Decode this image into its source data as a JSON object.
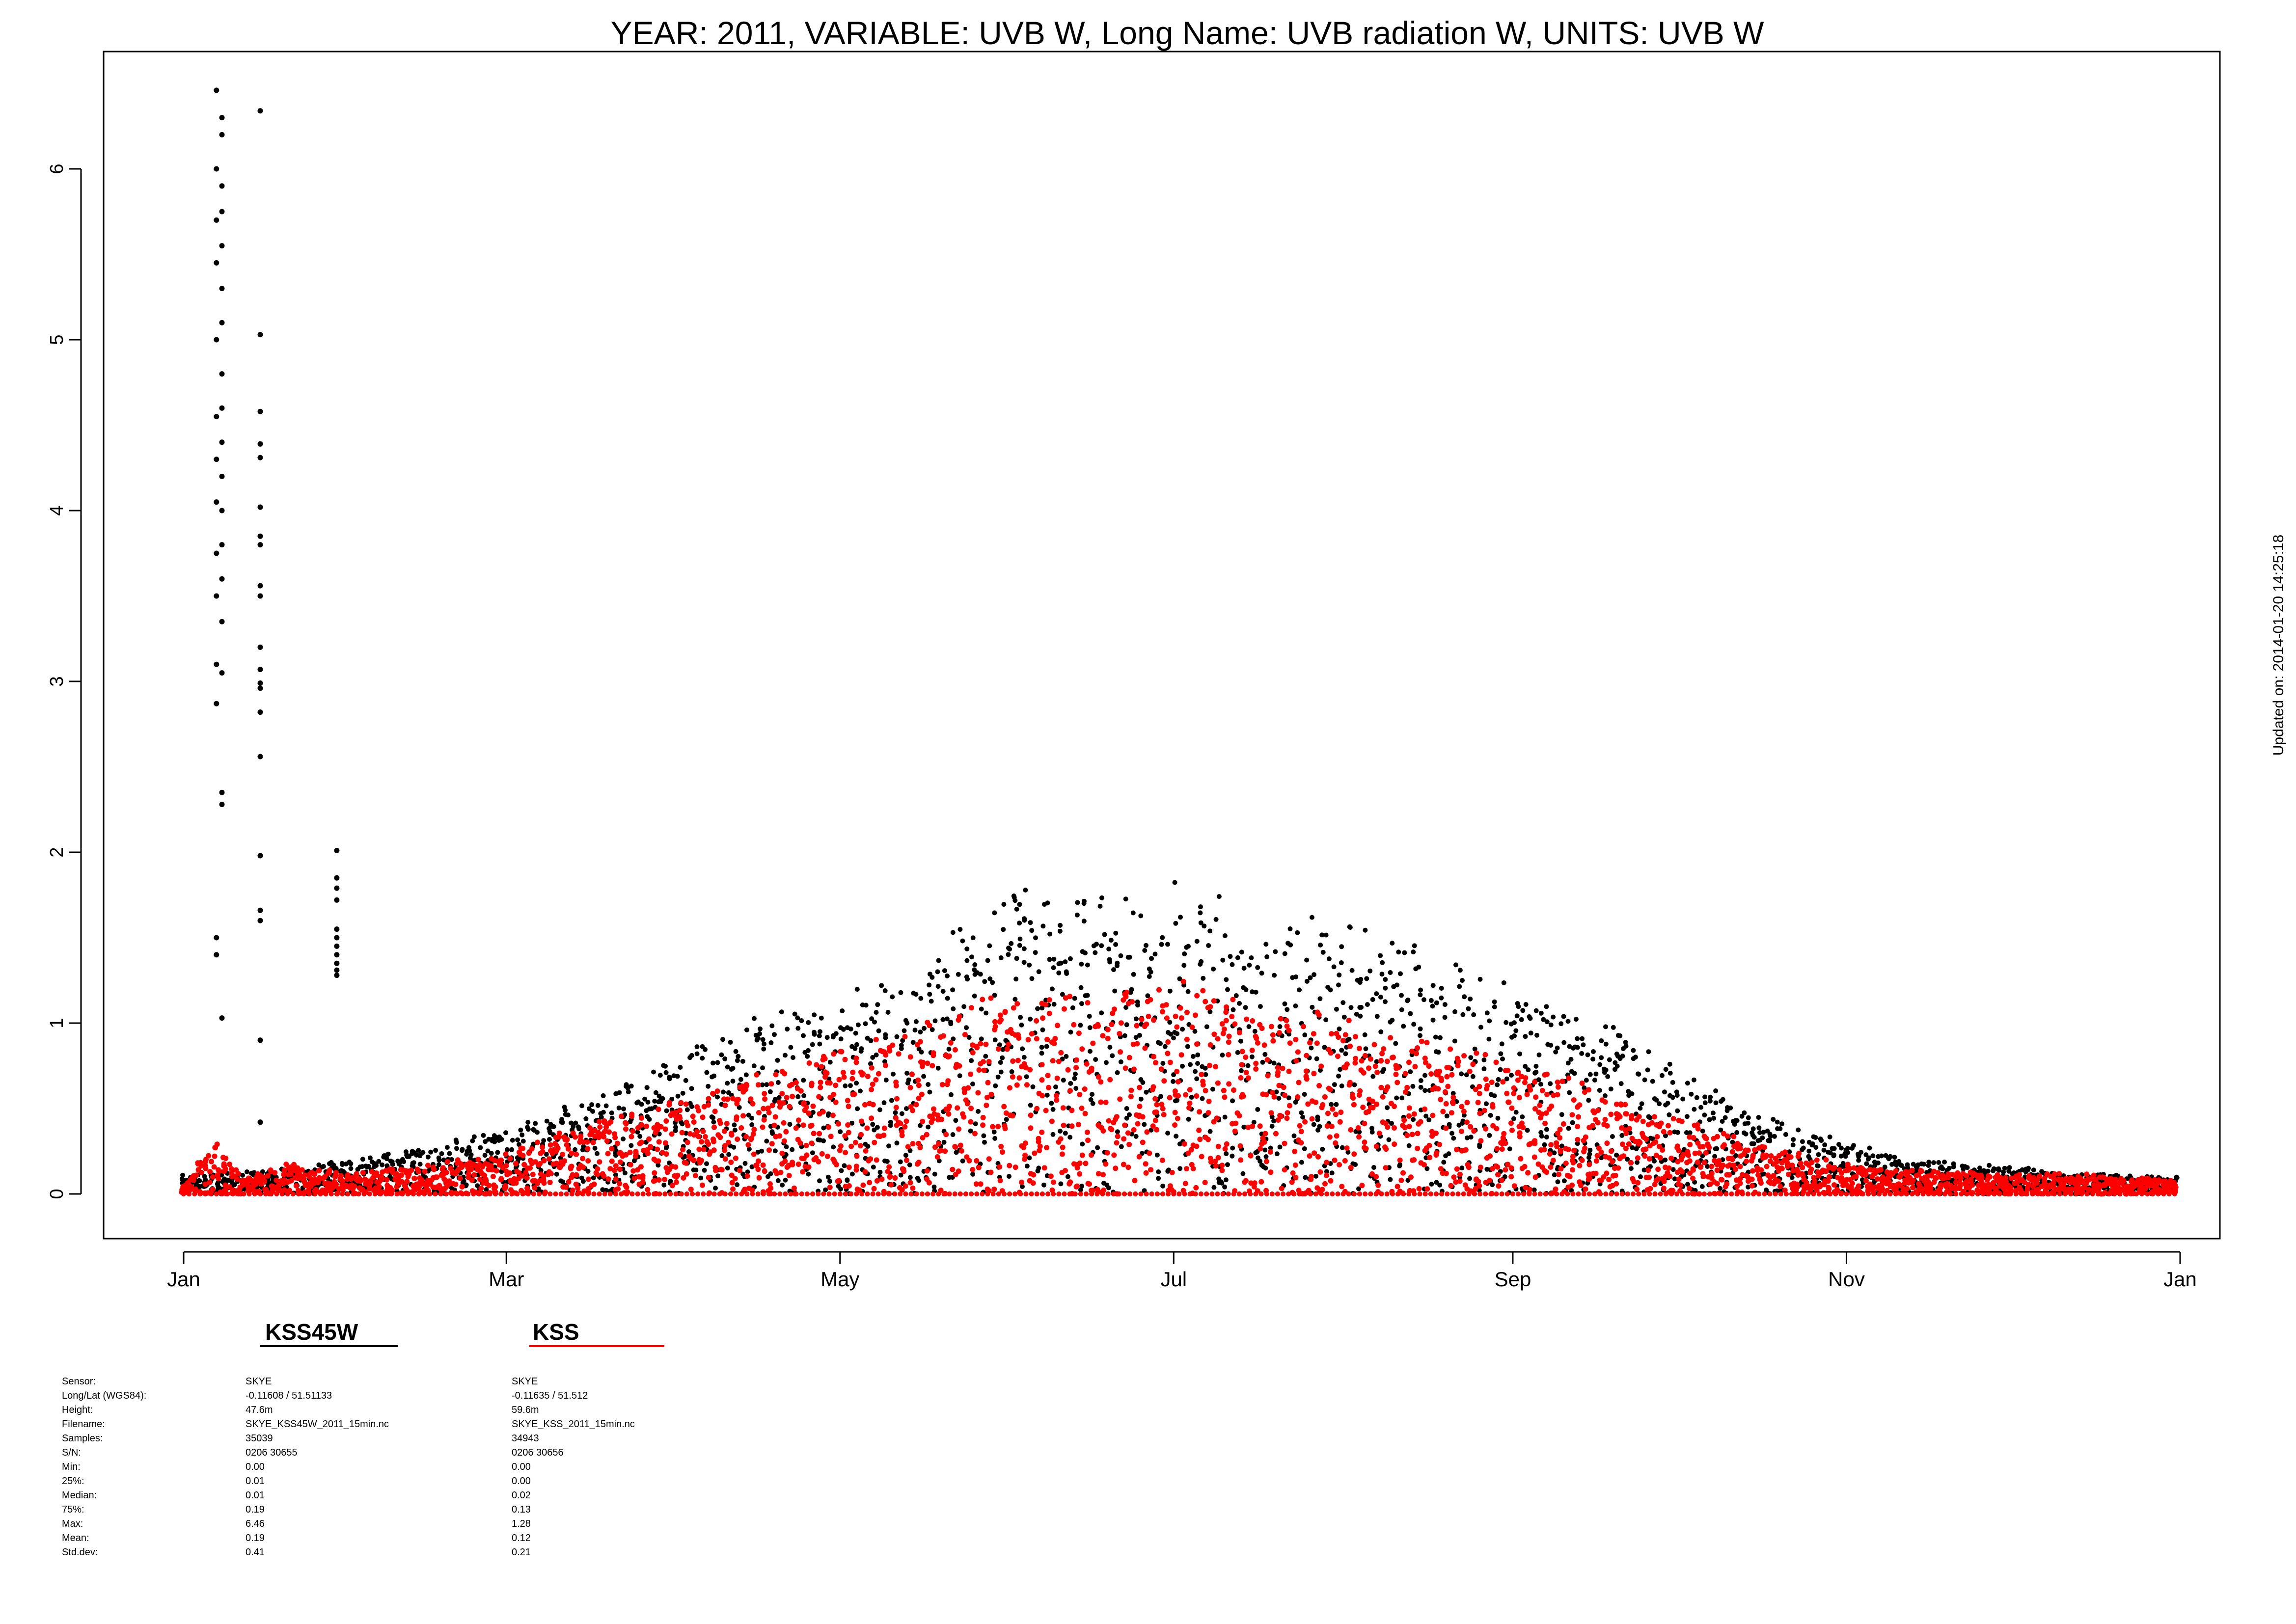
{
  "chart_data": {
    "type": "scatter",
    "title": "YEAR: 2011, VARIABLE: UVB  W, Long Name: UVB  radiation  W, UNITS: UVB  W",
    "xlabel": "",
    "ylabel": "",
    "x_range": [
      "2011-01-01",
      "2012-01-01"
    ],
    "ylim": [
      -0.27,
      6.72
    ],
    "grid": false,
    "x_ticks": [
      {
        "date": "2011-01-01",
        "label": "Jan"
      },
      {
        "date": "2011-03-01",
        "label": "Mar"
      },
      {
        "date": "2011-05-01",
        "label": "May"
      },
      {
        "date": "2011-07-01",
        "label": "Jul"
      },
      {
        "date": "2011-09-01",
        "label": "Sep"
      },
      {
        "date": "2011-11-01",
        "label": "Nov"
      },
      {
        "date": "2012-01-01",
        "label": "Jan"
      }
    ],
    "y_ticks": [
      0,
      1,
      2,
      3,
      4,
      5,
      6
    ],
    "updated_text": "Updated on: 2014-01-20 14:25:18",
    "series": [
      {
        "name": "KSS45W",
        "color": "#000000",
        "daily_max_envelope": [
          [
            "2011-01-01",
            0.12
          ],
          [
            "2011-01-15",
            0.14
          ],
          [
            "2011-02-01",
            0.2
          ],
          [
            "2011-02-15",
            0.28
          ],
          [
            "2011-03-01",
            0.4
          ],
          [
            "2011-03-15",
            0.55
          ],
          [
            "2011-04-01",
            0.8
          ],
          [
            "2011-04-15",
            1.05
          ],
          [
            "2011-05-01",
            1.2
          ],
          [
            "2011-05-15",
            1.35
          ],
          [
            "2011-06-01",
            1.8
          ],
          [
            "2011-06-15",
            1.75
          ],
          [
            "2011-07-01",
            1.85
          ],
          [
            "2011-07-15",
            1.7
          ],
          [
            "2011-08-01",
            1.6
          ],
          [
            "2011-08-15",
            1.45
          ],
          [
            "2011-09-01",
            1.25
          ],
          [
            "2011-09-15",
            1.05
          ],
          [
            "2011-10-01",
            0.75
          ],
          [
            "2011-10-15",
            0.5
          ],
          [
            "2011-11-01",
            0.3
          ],
          [
            "2011-11-15",
            0.2
          ],
          [
            "2011-12-01",
            0.16
          ],
          [
            "2011-12-15",
            0.12
          ],
          [
            "2011-12-31",
            0.1
          ]
        ],
        "outliers": [
          [
            "2011-01-07",
            6.46
          ],
          [
            "2011-01-07",
            6.0
          ],
          [
            "2011-01-07",
            5.7
          ],
          [
            "2011-01-07",
            5.45
          ],
          [
            "2011-01-07",
            5.0
          ],
          [
            "2011-01-07",
            4.55
          ],
          [
            "2011-01-07",
            4.3
          ],
          [
            "2011-01-07",
            4.05
          ],
          [
            "2011-01-07",
            3.75
          ],
          [
            "2011-01-07",
            3.5
          ],
          [
            "2011-01-07",
            3.1
          ],
          [
            "2011-01-07",
            2.87
          ],
          [
            "2011-01-07",
            1.5
          ],
          [
            "2011-01-07",
            1.4
          ],
          [
            "2011-01-08",
            6.3
          ],
          [
            "2011-01-08",
            6.2
          ],
          [
            "2011-01-08",
            5.9
          ],
          [
            "2011-01-08",
            5.75
          ],
          [
            "2011-01-08",
            5.55
          ],
          [
            "2011-01-08",
            5.3
          ],
          [
            "2011-01-08",
            5.1
          ],
          [
            "2011-01-08",
            4.8
          ],
          [
            "2011-01-08",
            4.6
          ],
          [
            "2011-01-08",
            4.4
          ],
          [
            "2011-01-08",
            4.2
          ],
          [
            "2011-01-08",
            4.0
          ],
          [
            "2011-01-08",
            3.8
          ],
          [
            "2011-01-08",
            3.6
          ],
          [
            "2011-01-08",
            3.35
          ],
          [
            "2011-01-08",
            3.05
          ],
          [
            "2011-01-08",
            2.35
          ],
          [
            "2011-01-08",
            2.28
          ],
          [
            "2011-01-08",
            1.03
          ],
          [
            "2011-01-15",
            6.34
          ],
          [
            "2011-01-15",
            5.03
          ],
          [
            "2011-01-15",
            4.58
          ],
          [
            "2011-01-15",
            4.39
          ],
          [
            "2011-01-15",
            4.31
          ],
          [
            "2011-01-15",
            4.02
          ],
          [
            "2011-01-15",
            3.85
          ],
          [
            "2011-01-15",
            3.8
          ],
          [
            "2011-01-15",
            3.56
          ],
          [
            "2011-01-15",
            3.5
          ],
          [
            "2011-01-15",
            3.2
          ],
          [
            "2011-01-15",
            3.07
          ],
          [
            "2011-01-15",
            2.99
          ],
          [
            "2011-01-15",
            2.96
          ],
          [
            "2011-01-15",
            2.82
          ],
          [
            "2011-01-15",
            2.56
          ],
          [
            "2011-01-15",
            1.98
          ],
          [
            "2011-01-15",
            1.66
          ],
          [
            "2011-01-15",
            1.6
          ],
          [
            "2011-01-15",
            0.9
          ],
          [
            "2011-01-15",
            0.42
          ],
          [
            "2011-01-29",
            2.01
          ],
          [
            "2011-01-29",
            1.85
          ],
          [
            "2011-01-29",
            1.79
          ],
          [
            "2011-01-29",
            1.72
          ],
          [
            "2011-01-29",
            1.55
          ],
          [
            "2011-01-29",
            1.5
          ],
          [
            "2011-01-29",
            1.45
          ],
          [
            "2011-01-29",
            1.4
          ],
          [
            "2011-01-29",
            1.35
          ],
          [
            "2011-01-29",
            1.31
          ],
          [
            "2011-01-29",
            1.28
          ]
        ]
      },
      {
        "name": "KSS",
        "color": "#ff0000",
        "daily_max_envelope": [
          [
            "2011-01-01",
            0.05
          ],
          [
            "2011-01-07",
            0.32
          ],
          [
            "2011-01-12",
            0.1
          ],
          [
            "2011-01-20",
            0.18
          ],
          [
            "2011-02-01",
            0.12
          ],
          [
            "2011-02-15",
            0.18
          ],
          [
            "2011-03-01",
            0.25
          ],
          [
            "2011-03-15",
            0.4
          ],
          [
            "2011-04-01",
            0.55
          ],
          [
            "2011-04-15",
            0.7
          ],
          [
            "2011-05-01",
            0.85
          ],
          [
            "2011-05-15",
            1.0
          ],
          [
            "2011-06-01",
            1.2
          ],
          [
            "2011-06-15",
            1.15
          ],
          [
            "2011-07-01",
            1.28
          ],
          [
            "2011-07-15",
            1.1
          ],
          [
            "2011-08-01",
            1.05
          ],
          [
            "2011-08-15",
            0.9
          ],
          [
            "2011-09-01",
            0.8
          ],
          [
            "2011-09-15",
            0.65
          ],
          [
            "2011-10-01",
            0.45
          ],
          [
            "2011-10-15",
            0.3
          ],
          [
            "2011-11-01",
            0.18
          ],
          [
            "2011-11-15",
            0.14
          ],
          [
            "2011-12-01",
            0.12
          ],
          [
            "2011-12-15",
            0.12
          ],
          [
            "2011-12-31",
            0.08
          ]
        ]
      }
    ]
  },
  "legend": {
    "row_labels": [
      "Sensor:",
      "Long/Lat (WGS84):",
      "Height:",
      "Filename:",
      "Samples:",
      "S/N:",
      "Min:",
      "25%:",
      "Median:",
      "75%:",
      "Max:",
      "Mean:",
      "Std.dev:"
    ],
    "stations": [
      {
        "title": "KSS45W",
        "color": "#000000",
        "values": [
          "SKYE",
          "-0.11608 / 51.51133",
          "47.6m",
          "SKYE_KSS45W_2011_15min.nc",
          "35039",
          "0206 30655",
          "0.00",
          "0.01",
          "0.01",
          "0.19",
          "6.46",
          "0.19",
          "0.41"
        ]
      },
      {
        "title": "KSS",
        "color": "#ff0000",
        "values": [
          "SKYE",
          "-0.11635 / 51.512",
          "59.6m",
          "SKYE_KSS_2011_15min.nc",
          "34943",
          "0206 30656",
          "0.00",
          "0.00",
          "0.02",
          "0.13",
          "1.28",
          "0.12",
          "0.21"
        ]
      }
    ]
  }
}
